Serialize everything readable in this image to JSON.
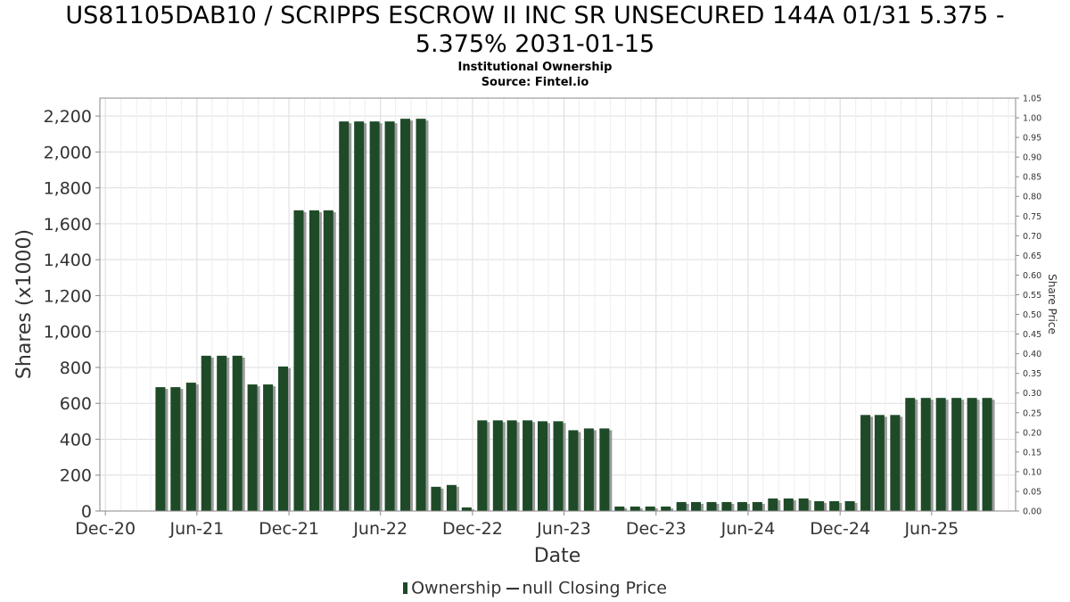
{
  "title_line1": "US81105DAB10 / SCRIPPS ESCROW II INC SR UNSECURED 144A 01/31 5.375 -",
  "title_line2": "5.375% 2031-01-15",
  "subtitle1": "Institutional Ownership",
  "subtitle2": "Source: Fintel.io",
  "legend": {
    "ownership": "Ownership",
    "price": "null Closing Price"
  },
  "colors": {
    "bar": "#1e4a28",
    "bar_shadow": "#9a9a9a",
    "grid": "#dddddd",
    "text": "#333333"
  },
  "chart_data": {
    "type": "bar",
    "xlabel": "Date",
    "ylabel": "Shares (x1000)",
    "y2label": "Share Price",
    "ylim": [
      0,
      2300
    ],
    "y2lim": [
      0,
      1.05
    ],
    "xlim": [
      "2020-11-20",
      "2025-11-15"
    ],
    "grid": true,
    "legend_position": "bottom",
    "x_ticks": [
      {
        "date": "2020-12-01",
        "label": "Dec-20"
      },
      {
        "date": "2021-06-01",
        "label": "Jun-21"
      },
      {
        "date": "2021-12-01",
        "label": "Dec-21"
      },
      {
        "date": "2022-06-01",
        "label": "Jun-22"
      },
      {
        "date": "2022-12-01",
        "label": "Dec-22"
      },
      {
        "date": "2023-06-01",
        "label": "Jun-23"
      },
      {
        "date": "2023-12-01",
        "label": "Dec-23"
      },
      {
        "date": "2024-06-01",
        "label": "Jun-24"
      },
      {
        "date": "2024-12-01",
        "label": "Dec-24"
      },
      {
        "date": "2025-06-01",
        "label": "Jun-25"
      }
    ],
    "y_ticks": [
      "0",
      "200",
      "400",
      "600",
      "800",
      "1,000",
      "1,200",
      "1,400",
      "1,600",
      "1,800",
      "2,000",
      "2,200"
    ],
    "y2_ticks": [
      "0.00",
      "0.05",
      "0.10",
      "0.15",
      "0.20",
      "0.25",
      "0.30",
      "0.35",
      "0.40",
      "0.45",
      "0.50",
      "0.55",
      "0.60",
      "0.65",
      "0.70",
      "0.75",
      "0.80",
      "0.85",
      "0.90",
      "0.95",
      "1.00",
      "1.05"
    ],
    "series": [
      {
        "points": [
          {
            "date": "2021-03-31",
            "value": 690
          },
          {
            "date": "2021-04-30",
            "value": 690
          },
          {
            "date": "2021-05-31",
            "value": 715
          },
          {
            "date": "2021-06-30",
            "value": 865
          },
          {
            "date": "2021-07-31",
            "value": 865
          },
          {
            "date": "2021-08-31",
            "value": 865
          },
          {
            "date": "2021-09-30",
            "value": 705
          },
          {
            "date": "2021-10-31",
            "value": 705
          },
          {
            "date": "2021-11-30",
            "value": 805
          },
          {
            "date": "2021-12-31",
            "value": 1675
          },
          {
            "date": "2022-01-31",
            "value": 1675
          },
          {
            "date": "2022-02-28",
            "value": 1675
          },
          {
            "date": "2022-03-31",
            "value": 2170
          },
          {
            "date": "2022-04-30",
            "value": 2170
          },
          {
            "date": "2022-05-31",
            "value": 2170
          },
          {
            "date": "2022-06-30",
            "value": 2170
          },
          {
            "date": "2022-07-31",
            "value": 2185
          },
          {
            "date": "2022-08-31",
            "value": 2185
          },
          {
            "date": "2022-09-30",
            "value": 135
          },
          {
            "date": "2022-10-31",
            "value": 145
          },
          {
            "date": "2022-11-30",
            "value": 20
          },
          {
            "date": "2022-12-31",
            "value": 505
          },
          {
            "date": "2023-01-31",
            "value": 505
          },
          {
            "date": "2023-02-28",
            "value": 505
          },
          {
            "date": "2023-03-31",
            "value": 505
          },
          {
            "date": "2023-04-30",
            "value": 500
          },
          {
            "date": "2023-05-31",
            "value": 500
          },
          {
            "date": "2023-06-30",
            "value": 450
          },
          {
            "date": "2023-07-31",
            "value": 460
          },
          {
            "date": "2023-08-31",
            "value": 460
          },
          {
            "date": "2023-09-30",
            "value": 25
          },
          {
            "date": "2023-10-31",
            "value": 25
          },
          {
            "date": "2023-11-30",
            "value": 25
          },
          {
            "date": "2023-12-31",
            "value": 25
          },
          {
            "date": "2024-01-31",
            "value": 50
          },
          {
            "date": "2024-02-29",
            "value": 50
          },
          {
            "date": "2024-03-31",
            "value": 50
          },
          {
            "date": "2024-04-30",
            "value": 50
          },
          {
            "date": "2024-05-31",
            "value": 50
          },
          {
            "date": "2024-06-30",
            "value": 50
          },
          {
            "date": "2024-07-31",
            "value": 70
          },
          {
            "date": "2024-08-31",
            "value": 70
          },
          {
            "date": "2024-09-30",
            "value": 70
          },
          {
            "date": "2024-10-31",
            "value": 55
          },
          {
            "date": "2024-11-30",
            "value": 55
          },
          {
            "date": "2024-12-31",
            "value": 55
          },
          {
            "date": "2025-01-31",
            "value": 535
          },
          {
            "date": "2025-02-28",
            "value": 535
          },
          {
            "date": "2025-03-31",
            "value": 535
          },
          {
            "date": "2025-04-30",
            "value": 630
          },
          {
            "date": "2025-05-31",
            "value": 630
          },
          {
            "date": "2025-06-30",
            "value": 630
          },
          {
            "date": "2025-07-31",
            "value": 630
          },
          {
            "date": "2025-08-31",
            "value": 630
          },
          {
            "date": "2025-09-30",
            "value": 630
          }
        ]
      }
    ]
  }
}
